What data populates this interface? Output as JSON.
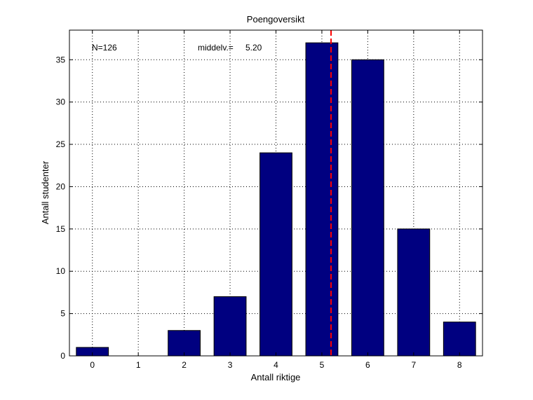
{
  "chart_data": {
    "type": "bar",
    "title": "Poengoversikt",
    "xlabel": "Antall riktige",
    "ylabel": "Antall studenter",
    "categories": [
      "0",
      "1",
      "2",
      "3",
      "4",
      "5",
      "6",
      "7",
      "8"
    ],
    "x": [
      0,
      1,
      2,
      3,
      4,
      5,
      6,
      7,
      8
    ],
    "values": [
      1,
      0,
      3,
      7,
      24,
      37,
      35,
      15,
      4
    ],
    "xlim": [
      -0.5,
      8.5
    ],
    "ylim": [
      0,
      38.5
    ],
    "yticks": [
      0,
      5,
      10,
      15,
      20,
      25,
      30,
      35
    ],
    "grid": true,
    "bar_color": "#000080",
    "mean_line": {
      "x": 5.2,
      "color": "#ff0000",
      "style": "dashed"
    },
    "annotations": {
      "n_text": "N=126",
      "mean_label": "middelv.=",
      "mean_value": "5.20"
    }
  }
}
